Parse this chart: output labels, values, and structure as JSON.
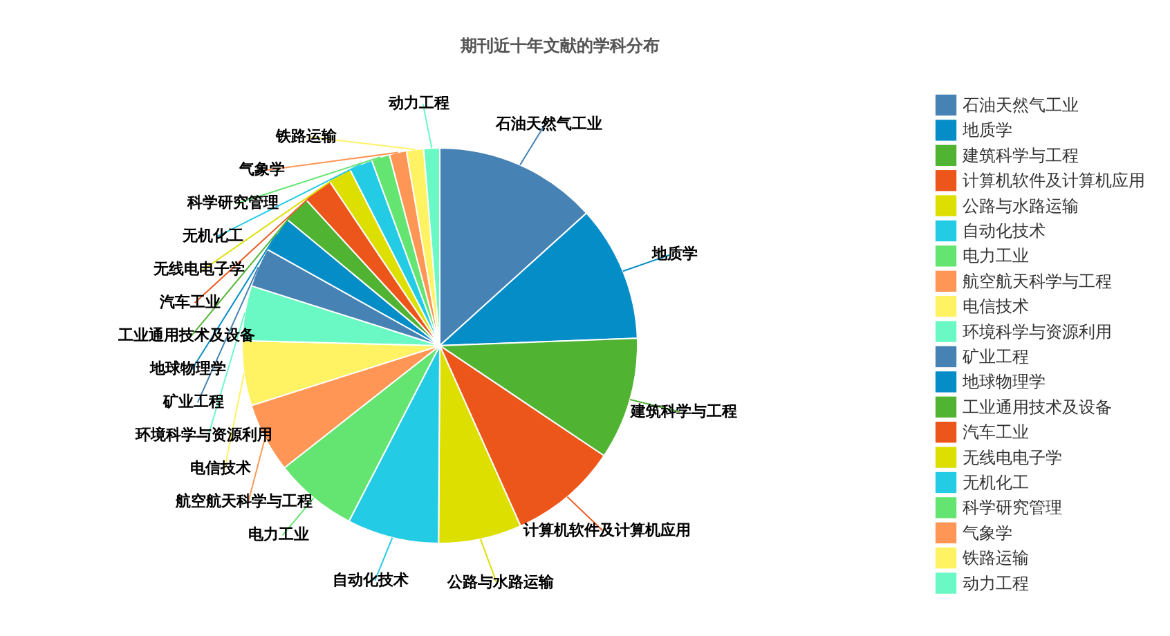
{
  "chart_data": {
    "type": "pie",
    "title": "期刊近十年文献的学科分布",
    "categories": [
      "石油天然气工业",
      "地质学",
      "建筑科学与工程",
      "计算机软件及计算机应用",
      "公路与水路运输",
      "自动化技术",
      "电力工业",
      "航空航天科学与工程",
      "电信技术",
      "环境科学与资源利用",
      "矿业工程",
      "地球物理学",
      "工业通用技术及设备",
      "汽车工业",
      "无线电电子学",
      "无机化工",
      "科学研究管理",
      "气象学",
      "铁路运输",
      "动力工程"
    ],
    "values": [
      13.3,
      11.1,
      10,
      8.9,
      6.8,
      7.5,
      6.8,
      5.7,
      5.3,
      4.5,
      3.2,
      2.9,
      2.2,
      2.4,
      1.9,
      1.9,
      1.5,
      1.4,
      1.4,
      1.3
    ],
    "colors": [
      "#4682b4",
      "#058dc7",
      "#50b432",
      "#ed561b",
      "#dddf00",
      "#24cbe5",
      "#64e572",
      "#ff9655",
      "#fff263",
      "#6af9c4",
      "#4682b4",
      "#058dc7",
      "#50b432",
      "#ed561b",
      "#dddf00",
      "#24cbe5",
      "#64e572",
      "#ff9655",
      "#fff263",
      "#6af9c4"
    ],
    "legend": "right"
  }
}
